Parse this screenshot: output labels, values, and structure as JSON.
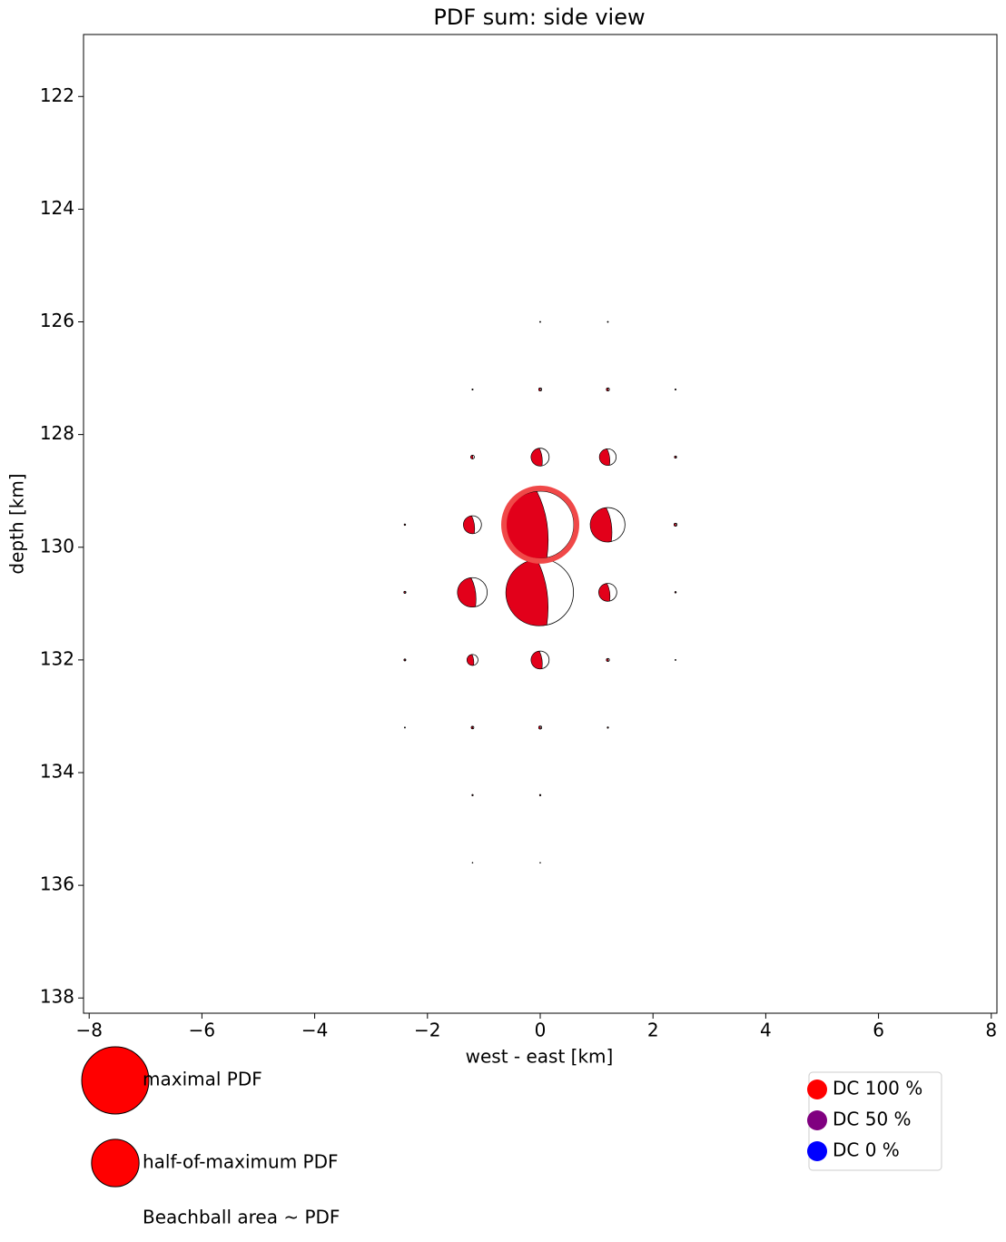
{
  "chart_data": {
    "type": "beachball",
    "title": "PDF sum: side view",
    "x_label": "west - east [km]",
    "y_label": "depth [km]",
    "xlim": [
      -8.1,
      8.1
    ],
    "ylim": [
      120.9,
      138.27
    ],
    "xticks": [
      {
        "value": -8,
        "label": "−8"
      },
      {
        "value": -6,
        "label": "−6"
      },
      {
        "value": -4,
        "label": "−4"
      },
      {
        "value": -2,
        "label": "−2"
      },
      0,
      2,
      4,
      6,
      8
    ],
    "yticks": [
      122,
      124,
      126,
      128,
      130,
      132,
      134,
      136,
      138
    ],
    "y_inverted": true,
    "color": "#e2001a",
    "x": [
      0,
      0,
      1.2,
      -1.2,
      -1.2,
      0,
      1.2,
      1.2,
      0,
      -1.2,
      -1.2,
      0,
      1.2,
      2.4,
      1.2,
      0,
      -1.2,
      2.4,
      -2.4,
      -2.4,
      2.4,
      -2.4,
      -1.2,
      0,
      1.2,
      -1.2,
      2.4,
      1.2,
      2.4,
      0,
      -2.4,
      -1.2,
      0
    ],
    "y": [
      129.6,
      130.8,
      129.6,
      130.8,
      129.6,
      128.4,
      128.4,
      130.8,
      132,
      132,
      128.4,
      127.2,
      127.2,
      129.6,
      132,
      133.2,
      133.2,
      128.4,
      129.6,
      130.8,
      130.8,
      132,
      134.4,
      134.4,
      133.2,
      127.2,
      127.2,
      126,
      132,
      126,
      133.2,
      135.6,
      135.6
    ],
    "pdf": [
      1,
      0.98,
      0.26,
      0.19,
      0.07,
      0.07,
      0.06,
      0.07,
      0.07,
      0.026,
      0.003,
      0.002,
      0.002,
      0.002,
      0.002,
      0.002,
      0.0015,
      0.001,
      0.0005,
      0.001,
      0.0005,
      0.0008,
      0.0004,
      0.0004,
      0.0004,
      0.0003,
      0.0003,
      0.0002,
      0.0002,
      0.0002,
      0.0002,
      0.0001,
      0.0001
    ],
    "best": {
      "x": 0,
      "y": 129.6,
      "color": "#f04848"
    },
    "size_legend": [
      {
        "label": "maximal PDF",
        "value": 1
      },
      {
        "label": "half-of-maximum PDF",
        "value": 0.5
      }
    ],
    "size_note": "Beachball area ~ PDF",
    "dc_legend": [
      {
        "label": "DC 100 %",
        "color": "#ff0000"
      },
      {
        "label": "DC 50 %",
        "color": "#800080"
      },
      {
        "label": "DC 0 %",
        "color": "#0000ff"
      }
    ]
  }
}
